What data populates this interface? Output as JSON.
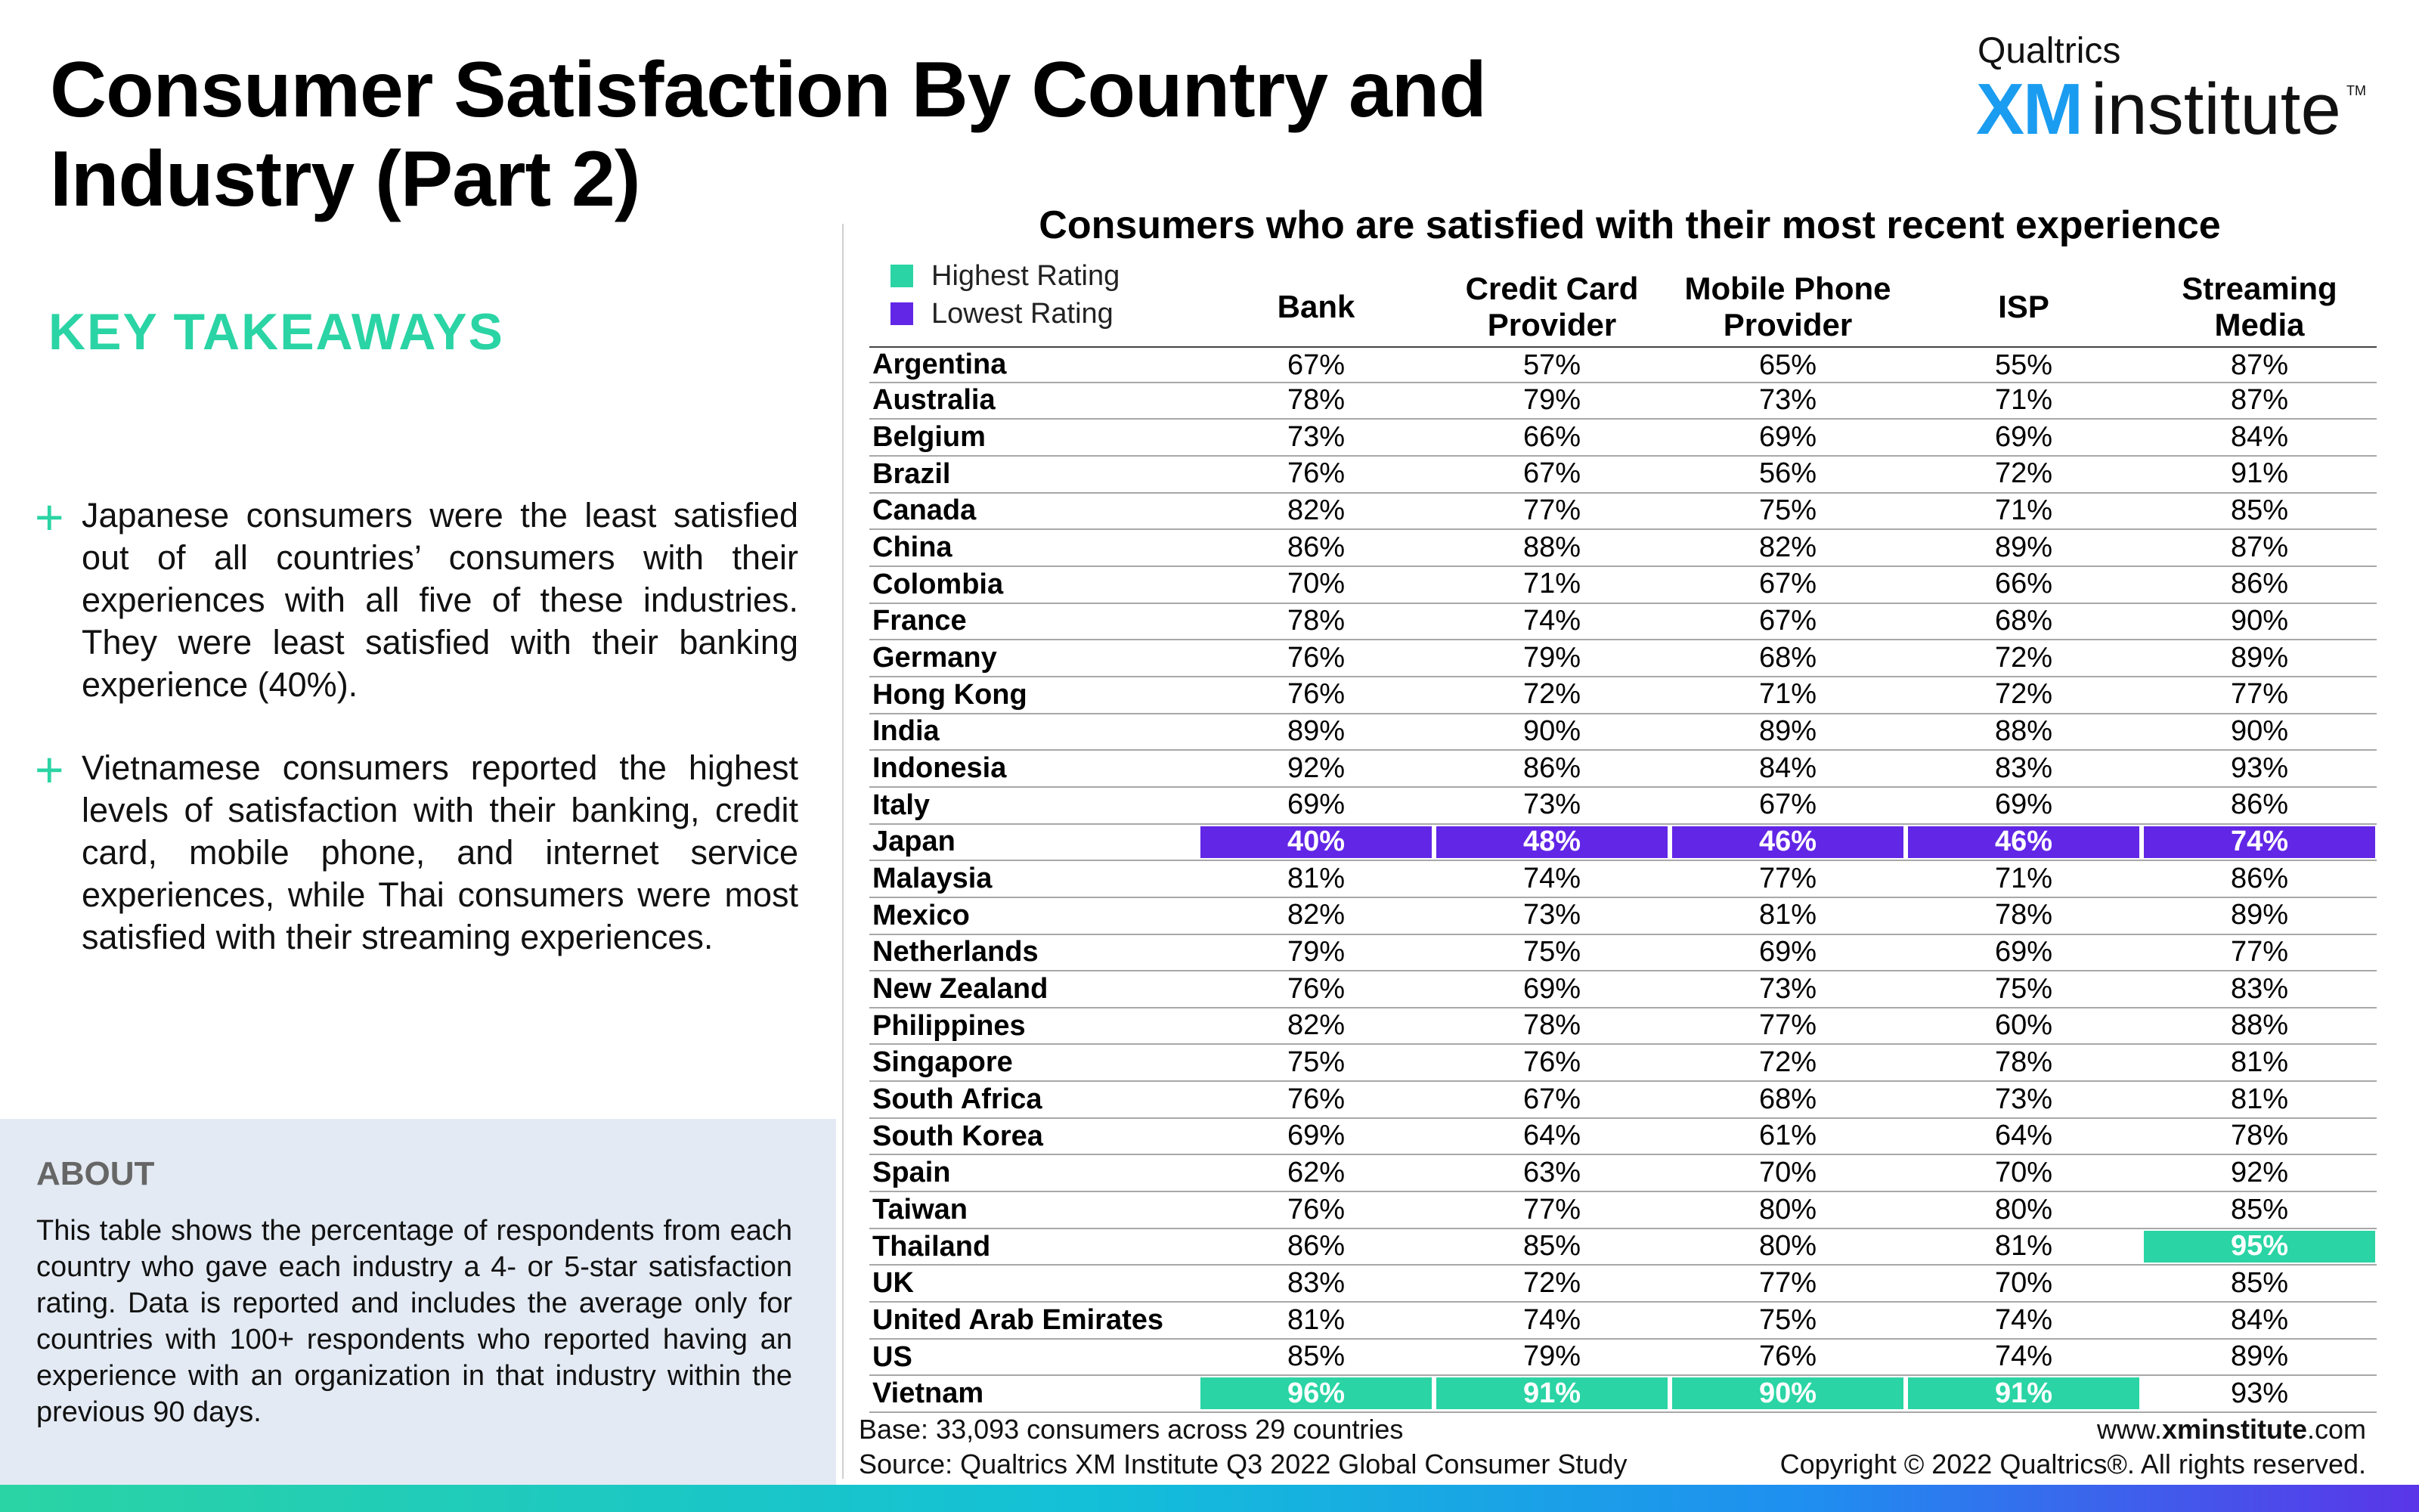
{
  "title_line1": "Consumer Satisfaction By Country and",
  "title_line2": "Industry (Part 2)",
  "logo": {
    "brand": "Qualtrics",
    "xm": "XM",
    "institute": "institute",
    "tm": "TM"
  },
  "key_takeaways_heading": "KEY TAKEAWAYS",
  "takeaways": [
    {
      "marker": "+",
      "text": "Japanese consumers were the least satisfied out of all countries’ consumers with their experiences with all five of these industries. They were least satisfied with their banking experience (40%)."
    },
    {
      "marker": "+",
      "text": "Vietnamese consumers reported the highest levels of satisfaction with their banking, credit card, mobile phone, and internet service experiences, while Thai consumers were most satisfied with their streaming experiences."
    }
  ],
  "about": {
    "heading": "ABOUT",
    "text": "This table shows the percentage of respondents from each country who gave each industry a 4- or 5-star satisfaction rating. Data is reported and includes the average only for countries with 100+ respondents who reported having an experience with an organization in that industry within the previous 90 days."
  },
  "table_title": "Consumers who are satisfied with their most recent experience",
  "legend": [
    {
      "label": "Highest Rating",
      "color": "#2ad4a4"
    },
    {
      "label": "Lowest Rating",
      "color": "#6226e6"
    }
  ],
  "columns": [
    "Bank",
    "Credit Card Provider",
    "Mobile Phone Provider",
    "ISP",
    "Streaming Media"
  ],
  "rows": [
    {
      "country": "Argentina",
      "values": [
        "67%",
        "57%",
        "65%",
        "55%",
        "87%"
      ],
      "highlight": [
        "",
        "",
        "",
        "",
        ""
      ]
    },
    {
      "country": "Australia",
      "values": [
        "78%",
        "79%",
        "73%",
        "71%",
        "87%"
      ],
      "highlight": [
        "",
        "",
        "",
        "",
        ""
      ]
    },
    {
      "country": "Belgium",
      "values": [
        "73%",
        "66%",
        "69%",
        "69%",
        "84%"
      ],
      "highlight": [
        "",
        "",
        "",
        "",
        ""
      ]
    },
    {
      "country": "Brazil",
      "values": [
        "76%",
        "67%",
        "56%",
        "72%",
        "91%"
      ],
      "highlight": [
        "",
        "",
        "",
        "",
        ""
      ]
    },
    {
      "country": "Canada",
      "values": [
        "82%",
        "77%",
        "75%",
        "71%",
        "85%"
      ],
      "highlight": [
        "",
        "",
        "",
        "",
        ""
      ]
    },
    {
      "country": "China",
      "values": [
        "86%",
        "88%",
        "82%",
        "89%",
        "87%"
      ],
      "highlight": [
        "",
        "",
        "",
        "",
        ""
      ]
    },
    {
      "country": "Colombia",
      "values": [
        "70%",
        "71%",
        "67%",
        "66%",
        "86%"
      ],
      "highlight": [
        "",
        "",
        "",
        "",
        ""
      ]
    },
    {
      "country": "France",
      "values": [
        "78%",
        "74%",
        "67%",
        "68%",
        "90%"
      ],
      "highlight": [
        "",
        "",
        "",
        "",
        ""
      ]
    },
    {
      "country": "Germany",
      "values": [
        "76%",
        "79%",
        "68%",
        "72%",
        "89%"
      ],
      "highlight": [
        "",
        "",
        "",
        "",
        ""
      ]
    },
    {
      "country": "Hong Kong",
      "values": [
        "76%",
        "72%",
        "71%",
        "72%",
        "77%"
      ],
      "highlight": [
        "",
        "",
        "",
        "",
        ""
      ]
    },
    {
      "country": "India",
      "values": [
        "89%",
        "90%",
        "89%",
        "88%",
        "90%"
      ],
      "highlight": [
        "",
        "",
        "",
        "",
        ""
      ]
    },
    {
      "country": "Indonesia",
      "values": [
        "92%",
        "86%",
        "84%",
        "83%",
        "93%"
      ],
      "highlight": [
        "",
        "",
        "",
        "",
        ""
      ]
    },
    {
      "country": "Italy",
      "values": [
        "69%",
        "73%",
        "67%",
        "69%",
        "86%"
      ],
      "highlight": [
        "",
        "",
        "",
        "",
        ""
      ]
    },
    {
      "country": "Japan",
      "values": [
        "40%",
        "48%",
        "46%",
        "46%",
        "74%"
      ],
      "highlight": [
        "low",
        "low",
        "low",
        "low",
        "low"
      ]
    },
    {
      "country": "Malaysia",
      "values": [
        "81%",
        "74%",
        "77%",
        "71%",
        "86%"
      ],
      "highlight": [
        "",
        "",
        "",
        "",
        ""
      ]
    },
    {
      "country": "Mexico",
      "values": [
        "82%",
        "73%",
        "81%",
        "78%",
        "89%"
      ],
      "highlight": [
        "",
        "",
        "",
        "",
        ""
      ]
    },
    {
      "country": "Netherlands",
      "values": [
        "79%",
        "75%",
        "69%",
        "69%",
        "77%"
      ],
      "highlight": [
        "",
        "",
        "",
        "",
        ""
      ]
    },
    {
      "country": "New Zealand",
      "values": [
        "76%",
        "69%",
        "73%",
        "75%",
        "83%"
      ],
      "highlight": [
        "",
        "",
        "",
        "",
        ""
      ]
    },
    {
      "country": "Philippines",
      "values": [
        "82%",
        "78%",
        "77%",
        "60%",
        "88%"
      ],
      "highlight": [
        "",
        "",
        "",
        "",
        ""
      ]
    },
    {
      "country": "Singapore",
      "values": [
        "75%",
        "76%",
        "72%",
        "78%",
        "81%"
      ],
      "highlight": [
        "",
        "",
        "",
        "",
        ""
      ]
    },
    {
      "country": "South Africa",
      "values": [
        "76%",
        "67%",
        "68%",
        "73%",
        "81%"
      ],
      "highlight": [
        "",
        "",
        "",
        "",
        ""
      ]
    },
    {
      "country": "South Korea",
      "values": [
        "69%",
        "64%",
        "61%",
        "64%",
        "78%"
      ],
      "highlight": [
        "",
        "",
        "",
        "",
        ""
      ]
    },
    {
      "country": "Spain",
      "values": [
        "62%",
        "63%",
        "70%",
        "70%",
        "92%"
      ],
      "highlight": [
        "",
        "",
        "",
        "",
        ""
      ]
    },
    {
      "country": "Taiwan",
      "values": [
        "76%",
        "77%",
        "80%",
        "80%",
        "85%"
      ],
      "highlight": [
        "",
        "",
        "",
        "",
        ""
      ]
    },
    {
      "country": "Thailand",
      "values": [
        "86%",
        "85%",
        "80%",
        "81%",
        "95%"
      ],
      "highlight": [
        "",
        "",
        "",
        "",
        "high"
      ]
    },
    {
      "country": "UK",
      "values": [
        "83%",
        "72%",
        "77%",
        "70%",
        "85%"
      ],
      "highlight": [
        "",
        "",
        "",
        "",
        ""
      ]
    },
    {
      "country": "United Arab Emirates",
      "values": [
        "81%",
        "74%",
        "75%",
        "74%",
        "84%"
      ],
      "highlight": [
        "",
        "",
        "",
        "",
        ""
      ]
    },
    {
      "country": "US",
      "values": [
        "85%",
        "79%",
        "76%",
        "74%",
        "89%"
      ],
      "highlight": [
        "",
        "",
        "",
        "",
        ""
      ]
    },
    {
      "country": "Vietnam",
      "values": [
        "96%",
        "91%",
        "90%",
        "91%",
        "93%"
      ],
      "highlight": [
        "high",
        "high",
        "high",
        "high",
        ""
      ]
    }
  ],
  "footer": {
    "base": "Base: 33,093 consumers across 29 countries",
    "source": "Source: Qualtrics XM Institute Q3 2022 Global Consumer Study",
    "url_prefix": "www.",
    "url_bold": "xminstitute",
    "url_suffix": ".com",
    "copyright": "Copyright © 2022 Qualtrics®. All rights reserved."
  },
  "colors": {
    "accent_green": "#2ad4a4",
    "accent_purple": "#6226e6",
    "logo_blue": "#1a9cf0",
    "about_bg": "#e3eaf3"
  }
}
